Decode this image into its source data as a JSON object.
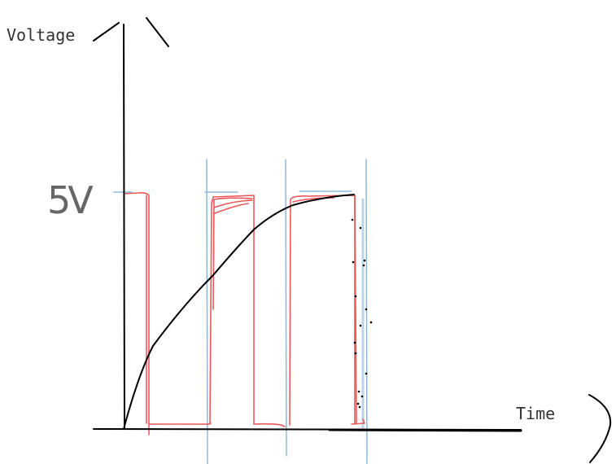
{
  "labels": {
    "y_axis": "Voltage",
    "level": "5V",
    "x_axis": "Time"
  }
}
